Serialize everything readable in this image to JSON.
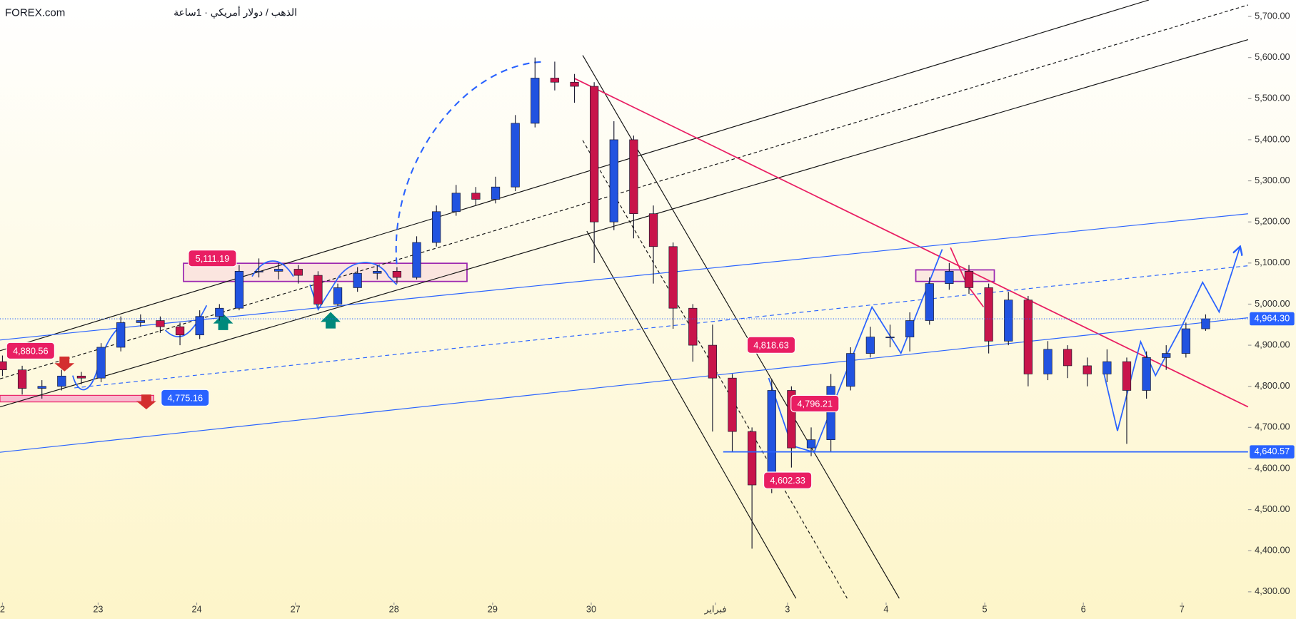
{
  "chart_data": {
    "type": "candlestick",
    "source": "FOREX.com",
    "title": "الذهب / دولار أمريكي · 1ساعة",
    "up_color": "#2153e0",
    "down_color": "#c8144b",
    "x": [
      0,
      0.2,
      0.4,
      0.6,
      0.8,
      1,
      1.2,
      1.4,
      1.6,
      1.8,
      2,
      2.2,
      2.4,
      2.6,
      2.8,
      3,
      3.2,
      3.4,
      3.6,
      3.8,
      4,
      4.2,
      4.4,
      4.6,
      4.8,
      5,
      5.2,
      5.4,
      5.6,
      5.8,
      6,
      6.2,
      6.4,
      6.6,
      6.8,
      7,
      7.2,
      7.4,
      7.6,
      7.8,
      8,
      8.2,
      8.4,
      8.6,
      8.8,
      9,
      9.2,
      9.4,
      9.6,
      9.8,
      10,
      10.2,
      10.4,
      10.6,
      10.8,
      11,
      11.2,
      11.4,
      11.6,
      11.8,
      12,
      12.2
    ],
    "open": [
      4860,
      4840,
      4795,
      4800,
      4825,
      4820,
      4895,
      4955,
      4960,
      4945,
      4925,
      4970,
      4990,
      5080,
      5080,
      5085,
      5070,
      5000,
      5040,
      5075,
      5080,
      5065,
      5150,
      5225,
      5270,
      5255,
      5285,
      5440,
      5550,
      5540,
      5530,
      5200,
      5400,
      5220,
      5140,
      4990,
      4900,
      4820,
      4690,
      4560,
      4790,
      4650,
      4670,
      4800,
      4880,
      4920,
      4920,
      4960,
      5050,
      5080,
      5040,
      4910,
      5010,
      4830,
      4890,
      4850,
      4830,
      4860,
      4790,
      4870,
      4880,
      4940
    ],
    "high": [
      4875,
      4850,
      4815,
      4840,
      4835,
      4905,
      4970,
      4975,
      4970,
      4955,
      4985,
      5000,
      5095,
      5111.19,
      5100,
      5095,
      5080,
      5050,
      5090,
      5095,
      5090,
      5165,
      5240,
      5290,
      5285,
      5310,
      5460,
      5600,
      5590,
      5560,
      5540,
      5445,
      5410,
      5240,
      5150,
      5000,
      4950,
      4830,
      4700,
      4818.63,
      4800,
      4700,
      4830,
      4895,
      4945,
      4950,
      4980,
      5065,
      5100,
      5095,
      5050,
      5030,
      5020,
      4910,
      4900,
      4870,
      4890,
      4870,
      4885,
      4900,
      4955,
      4975
    ],
    "low": [
      4825,
      4780,
      4770,
      4790,
      4805,
      4810,
      4885,
      4945,
      4930,
      4900,
      4915,
      4960,
      4985,
      5065,
      5060,
      5050,
      4990,
      4995,
      5030,
      5060,
      5050,
      5060,
      5140,
      5215,
      5240,
      5245,
      5275,
      5430,
      5520,
      5490,
      5100,
      5180,
      5160,
      5050,
      4940,
      4860,
      4690,
      4640,
      4405,
      4540,
      4602.33,
      4630,
      4640.57,
      4790,
      4870,
      4895,
      4885,
      4950,
      5035,
      5025,
      4880,
      4900,
      4800,
      4815,
      4820,
      4800,
      4810,
      4660,
      4770,
      4840,
      4870,
      4935
    ],
    "close": [
      4840,
      4795,
      4800,
      4825,
      4820,
      4895,
      4955,
      4960,
      4945,
      4925,
      4970,
      4990,
      5080,
      5080,
      5085,
      5070,
      5000,
      5040,
      5075,
      5080,
      5065,
      5150,
      5225,
      5270,
      5255,
      5285,
      5440,
      5550,
      5540,
      5530,
      5200,
      5400,
      5220,
      5140,
      4990,
      4900,
      4820,
      4690,
      4560,
      4790,
      4650,
      4670,
      4800,
      4880,
      4920,
      4920,
      4960,
      5050,
      5080,
      5040,
      4910,
      5010,
      4830,
      4890,
      4850,
      4830,
      4860,
      4790,
      4870,
      4880,
      4940,
      4964.3
    ],
    "xlim": [
      -0.025,
      12.63
    ],
    "ylim": [
      4278,
      5740
    ],
    "xticks": [
      {
        "value": 0,
        "label": "2"
      },
      {
        "value": 0.97,
        "label": "23"
      },
      {
        "value": 1.97,
        "label": "24"
      },
      {
        "value": 2.97,
        "label": "27"
      },
      {
        "value": 3.97,
        "label": "28"
      },
      {
        "value": 4.97,
        "label": "29"
      },
      {
        "value": 5.97,
        "label": "30"
      },
      {
        "value": 7.23,
        "label": "فبراير"
      },
      {
        "value": 7.96,
        "label": "3"
      },
      {
        "value": 8.96,
        "label": "4"
      },
      {
        "value": 9.96,
        "label": "5"
      },
      {
        "value": 10.96,
        "label": "6"
      },
      {
        "value": 11.96,
        "label": "7"
      }
    ],
    "yticks": [
      {
        "value": 5700,
        "label": "5,700.00"
      },
      {
        "value": 5600,
        "label": "5,600.00"
      },
      {
        "value": 5500,
        "label": "5,500.00"
      },
      {
        "value": 5400,
        "label": "5,400.00"
      },
      {
        "value": 5300,
        "label": "5,300.00"
      },
      {
        "value": 5200,
        "label": "5,200.00"
      },
      {
        "value": 5100,
        "label": "5,100.00"
      },
      {
        "value": 5000,
        "label": "5,000.00"
      },
      {
        "value": 4900,
        "label": "4,900.00"
      },
      {
        "value": 4800,
        "label": "4,800.00"
      },
      {
        "value": 4700,
        "label": "4,700.00"
      },
      {
        "value": 4600,
        "label": "4,600.00"
      },
      {
        "value": 4500,
        "label": "4,500.00"
      },
      {
        "value": 4400,
        "label": "4,400.00"
      },
      {
        "value": 4300,
        "label": "4,300.00"
      }
    ],
    "last_price": {
      "value": 4964.3,
      "label": "4,964.30",
      "color": "#2962ff"
    },
    "level": {
      "value": 4640.57,
      "label": "4,640.57",
      "color": "#2962ff"
    },
    "annotations": [
      {
        "value": 5111.19,
        "label": "5,111.19",
        "color": "#e91e63"
      },
      {
        "value": 4880.56,
        "label": "4,880.56",
        "color": "#e91e63"
      },
      {
        "value": 4775.16,
        "label": "4,775.16",
        "color": "#2962ff"
      },
      {
        "value": 4818.63,
        "label": "4,818.63",
        "color": "#e91e63"
      },
      {
        "value": 4796.21,
        "label": "4,796.21",
        "color": "#e91e63"
      },
      {
        "value": 4602.33,
        "label": "4,602.33",
        "color": "#e91e63"
      }
    ]
  }
}
